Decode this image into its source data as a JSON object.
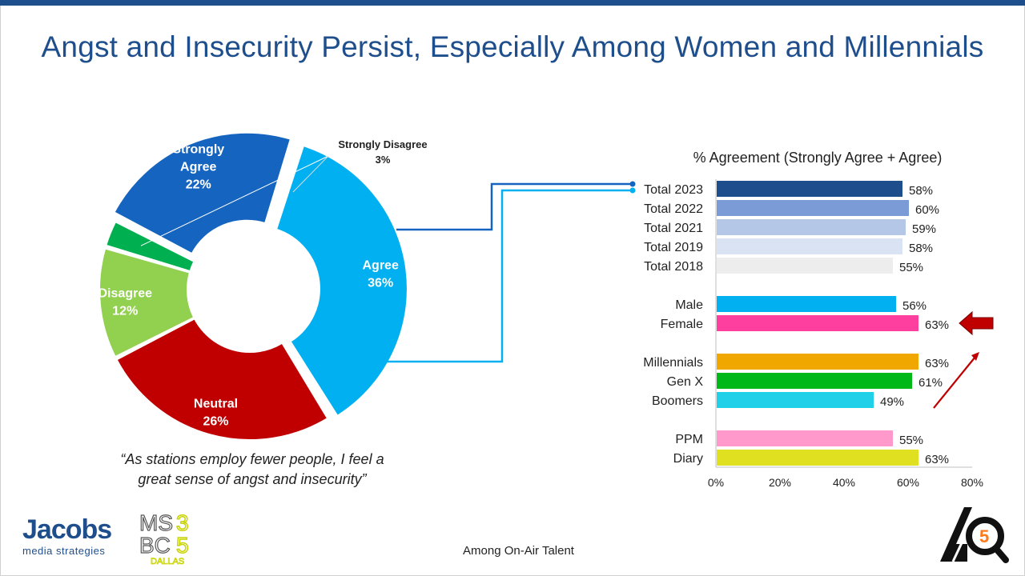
{
  "title": "Angst and Insecurity Persist, Especially Among Women and Millennials",
  "quote": "“As stations employ fewer people, I feel a great sense of angst and insecurity”",
  "footer_note": "Among On-Air Talent",
  "logos": {
    "jacobs_word": "Jacobs",
    "jacobs_sub": "media strategies",
    "ms_mark": "MS3BC5 DALLAS"
  },
  "chart_data": [
    {
      "type": "pie",
      "donut": true,
      "slices": [
        {
          "label": "Strongly Agree",
          "value": 22,
          "display": "22%",
          "color": "#1565c0"
        },
        {
          "label": "Agree",
          "value": 36,
          "display": "36%",
          "color": "#00b0f0"
        },
        {
          "label": "Neutral",
          "value": 26,
          "display": "26%",
          "color": "#c00000"
        },
        {
          "label": "Disagree",
          "value": 12,
          "display": "12%",
          "color": "#92d050"
        },
        {
          "label": "Strongly Disagree",
          "value": 3,
          "display": "3%",
          "color": "#00b050"
        }
      ]
    },
    {
      "type": "bar",
      "orientation": "horizontal",
      "title": "% Agreement (Strongly Agree + Agree)",
      "xlim": [
        0,
        80
      ],
      "xticks": [
        "0%",
        "20%",
        "40%",
        "60%",
        "80%"
      ],
      "categories": [
        "Total 2023",
        "Total 2022",
        "Total 2021",
        "Total 2019",
        "Total 2018",
        "Male",
        "Female",
        "Millennials",
        "Gen X",
        "Boomers",
        "PPM",
        "Diary"
      ],
      "values": [
        58,
        60,
        59,
        58,
        55,
        56,
        63,
        63,
        61,
        49,
        55,
        63
      ],
      "labels": [
        "58%",
        "60%",
        "59%",
        "58%",
        "55%",
        "56%",
        "63%",
        "63%",
        "61%",
        "49%",
        "55%",
        "63%"
      ],
      "colors": [
        "#1f4e8c",
        "#7a9bd6",
        "#b4c7e7",
        "#dae3f3",
        "#ededed",
        "#00b0f0",
        "#ff3f9f",
        "#f0a800",
        "#00b818",
        "#1fd0e8",
        "#ff99cc",
        "#e0e020"
      ],
      "highlight_arrow_target": "Female"
    }
  ]
}
